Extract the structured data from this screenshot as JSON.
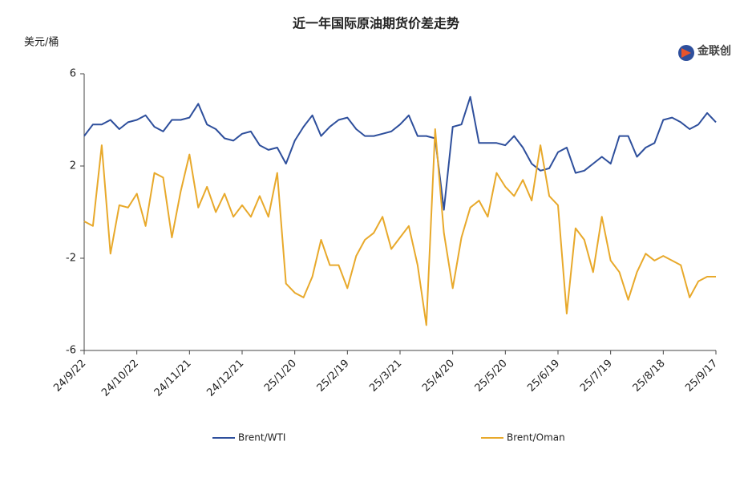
{
  "chart_data": {
    "type": "line",
    "title": "近一年国际原油期货价差走势",
    "y_label": "美元/桶",
    "logo": "金联创",
    "categories": [
      "24/9/22",
      null,
      null,
      null,
      null,
      null,
      "24/10/22",
      null,
      null,
      null,
      null,
      null,
      "24/11/21",
      null,
      null,
      null,
      null,
      null,
      "24/12/21",
      null,
      null,
      null,
      null,
      null,
      "25/1/20",
      null,
      null,
      null,
      null,
      null,
      "25/2/19",
      null,
      null,
      null,
      null,
      null,
      "25/3/21",
      null,
      null,
      null,
      null,
      null,
      "25/4/20",
      null,
      null,
      null,
      null,
      null,
      "25/5/20",
      null,
      null,
      null,
      null,
      null,
      "25/6/19",
      null,
      null,
      null,
      null,
      null,
      "25/7/19",
      null,
      null,
      null,
      null,
      null,
      "25/8/18",
      null,
      null,
      null,
      null,
      null,
      "25/9/17"
    ],
    "series": [
      {
        "name": "Brent/WTI",
        "color": "#2e4f9c",
        "values": [
          3.3,
          3.8,
          3.8,
          4.0,
          3.6,
          3.9,
          4.0,
          4.2,
          3.7,
          3.5,
          4.0,
          4.0,
          4.1,
          4.7,
          3.8,
          3.6,
          3.2,
          3.1,
          3.4,
          3.5,
          2.9,
          2.7,
          2.8,
          2.1,
          3.1,
          3.7,
          4.2,
          3.3,
          3.7,
          4.0,
          4.1,
          3.6,
          3.3,
          3.3,
          3.4,
          3.5,
          3.8,
          4.2,
          3.3,
          3.3,
          3.2,
          0.1,
          3.7,
          3.8,
          5.0,
          3.0,
          3.0,
          3.0,
          2.9,
          3.3,
          2.8,
          2.1,
          1.8,
          1.9,
          2.6,
          2.8,
          1.7,
          1.8,
          2.1,
          2.4,
          2.1,
          3.3,
          3.3,
          2.4,
          2.8,
          3.0,
          4.0,
          4.1,
          3.9,
          3.6,
          3.8,
          4.3,
          3.9
        ]
      },
      {
        "name": "Brent/Oman",
        "color": "#e8a92b",
        "values": [
          -0.4,
          -0.6,
          2.9,
          -1.8,
          0.3,
          0.2,
          0.8,
          -0.6,
          1.7,
          1.5,
          -1.1,
          0.9,
          2.5,
          0.2,
          1.1,
          0.0,
          0.8,
          -0.2,
          0.3,
          -0.2,
          0.7,
          -0.2,
          1.7,
          -3.1,
          -3.5,
          -3.7,
          -2.8,
          -1.2,
          -2.3,
          -2.3,
          -3.3,
          -1.9,
          -1.2,
          -0.9,
          -0.2,
          -1.6,
          -1.1,
          -0.6,
          -2.3,
          -4.9,
          3.6,
          -0.9,
          -3.3,
          -1.1,
          0.2,
          0.5,
          -0.2,
          1.7,
          1.1,
          0.7,
          1.4,
          0.5,
          2.9,
          0.7,
          0.3,
          -4.4,
          -0.7,
          -1.2,
          -2.6,
          -0.2,
          -2.1,
          -2.6,
          -3.8,
          -2.6,
          -1.8,
          -2.1,
          -1.9,
          -2.1,
          -2.3,
          -3.7,
          -3.0,
          -2.8,
          -2.8
        ]
      }
    ],
    "ylim": [
      -6,
      6
    ],
    "yticks": [
      -6,
      -2,
      2,
      6
    ],
    "grid": false
  }
}
